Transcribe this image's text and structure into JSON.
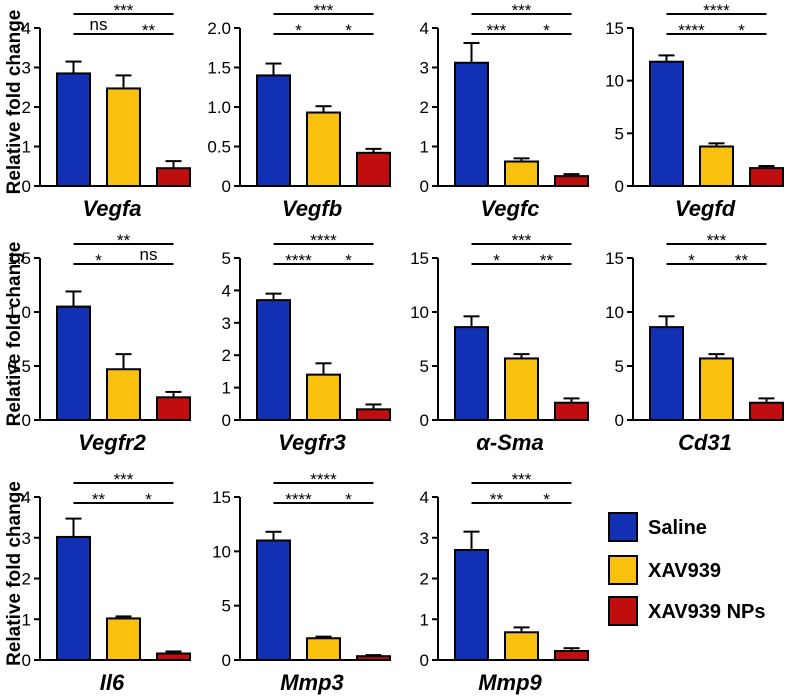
{
  "series_colors": [
    "#1230b4",
    "#f9c00d",
    "#c00d0d"
  ],
  "legend": [
    "Saline",
    "XAV939",
    "XAV939 NPs"
  ],
  "y_axis_label": "Relative fold change",
  "chart_data": [
    {
      "type": "bar",
      "title": "Vegfa",
      "categories": [
        "Saline",
        "XAV939",
        "XAV939 NPs"
      ],
      "values": [
        2.85,
        2.47,
        0.45
      ],
      "errors": [
        0.3,
        0.33,
        0.18
      ],
      "ylim": [
        0,
        4
      ],
      "ticks": [
        0,
        1,
        2,
        3,
        4
      ],
      "tick_labels": [
        "0",
        "1",
        "2",
        "3",
        "4"
      ],
      "ylabel": "Relative fold change",
      "significance": [
        {
          "from": 0,
          "to": 2,
          "label": "***"
        },
        {
          "from": 0,
          "to": 1,
          "label": "ns"
        },
        {
          "from": 1,
          "to": 2,
          "label": "**"
        }
      ]
    },
    {
      "type": "bar",
      "title": "Vegfb",
      "categories": [
        "Saline",
        "XAV939",
        "XAV939 NPs"
      ],
      "values": [
        1.4,
        0.93,
        0.42
      ],
      "errors": [
        0.15,
        0.08,
        0.05
      ],
      "ylim": [
        0,
        2
      ],
      "ticks": [
        0,
        0.5,
        1,
        1.5,
        2
      ],
      "tick_labels": [
        "0",
        "0.5",
        "1.0",
        "1.5",
        "2.0"
      ],
      "ylabel": "",
      "significance": [
        {
          "from": 0,
          "to": 2,
          "label": "***"
        },
        {
          "from": 0,
          "to": 1,
          "label": "*"
        },
        {
          "from": 1,
          "to": 2,
          "label": "*"
        }
      ]
    },
    {
      "type": "bar",
      "title": "Vegfc",
      "categories": [
        "Saline",
        "XAV939",
        "XAV939 NPs"
      ],
      "values": [
        3.12,
        0.62,
        0.25
      ],
      "errors": [
        0.5,
        0.08,
        0.05
      ],
      "ylim": [
        0,
        4
      ],
      "ticks": [
        0,
        1,
        2,
        3,
        4
      ],
      "tick_labels": [
        "0",
        "1",
        "2",
        "3",
        "4"
      ],
      "ylabel": "",
      "significance": [
        {
          "from": 0,
          "to": 2,
          "label": "***"
        },
        {
          "from": 0,
          "to": 1,
          "label": "***"
        },
        {
          "from": 1,
          "to": 2,
          "label": "*"
        }
      ]
    },
    {
      "type": "bar",
      "title": "Vegfd",
      "categories": [
        "Saline",
        "XAV939",
        "XAV939 NPs"
      ],
      "values": [
        11.8,
        3.75,
        1.7
      ],
      "errors": [
        0.6,
        0.3,
        0.2
      ],
      "ylim": [
        0,
        15
      ],
      "ticks": [
        0,
        5,
        10,
        15
      ],
      "tick_labels": [
        "0",
        "5",
        "10",
        "15"
      ],
      "ylabel": "",
      "significance": [
        {
          "from": 0,
          "to": 2,
          "label": "****"
        },
        {
          "from": 0,
          "to": 1,
          "label": "****"
        },
        {
          "from": 1,
          "to": 2,
          "label": "*"
        }
      ]
    },
    {
      "type": "bar",
      "title": "Vegfr2",
      "categories": [
        "Saline",
        "XAV939",
        "XAV939 NPs"
      ],
      "values": [
        1.05,
        0.47,
        0.21
      ],
      "errors": [
        0.14,
        0.14,
        0.05
      ],
      "ylim": [
        0,
        1.5
      ],
      "ticks": [
        0,
        0.5,
        1,
        1.5
      ],
      "tick_labels": [
        "0",
        "0.5",
        "1.0",
        "1.5"
      ],
      "ylabel": "Relative fold change",
      "significance": [
        {
          "from": 0,
          "to": 2,
          "label": "**"
        },
        {
          "from": 0,
          "to": 1,
          "label": "*"
        },
        {
          "from": 1,
          "to": 2,
          "label": "ns"
        }
      ]
    },
    {
      "type": "bar",
      "title": "Vegfr3",
      "categories": [
        "Saline",
        "XAV939",
        "XAV939 NPs"
      ],
      "values": [
        3.7,
        1.4,
        0.33
      ],
      "errors": [
        0.2,
        0.35,
        0.15
      ],
      "ylim": [
        0,
        5
      ],
      "ticks": [
        0,
        1,
        2,
        3,
        4,
        5
      ],
      "tick_labels": [
        "0",
        "1",
        "2",
        "3",
        "4",
        "5"
      ],
      "ylabel": "",
      "significance": [
        {
          "from": 0,
          "to": 2,
          "label": "****"
        },
        {
          "from": 0,
          "to": 1,
          "label": "****"
        },
        {
          "from": 1,
          "to": 2,
          "label": "*"
        }
      ]
    },
    {
      "type": "bar",
      "title": "α-Sma",
      "categories": [
        "Saline",
        "XAV939",
        "XAV939 NPs"
      ],
      "values": [
        8.6,
        5.7,
        1.6
      ],
      "errors": [
        1.0,
        0.4,
        0.4
      ],
      "ylim": [
        0,
        15
      ],
      "ticks": [
        0,
        5,
        10,
        15
      ],
      "tick_labels": [
        "0",
        "5",
        "10",
        "15"
      ],
      "ylabel": "",
      "significance": [
        {
          "from": 0,
          "to": 2,
          "label": "***"
        },
        {
          "from": 0,
          "to": 1,
          "label": "*"
        },
        {
          "from": 1,
          "to": 2,
          "label": "**"
        }
      ]
    },
    {
      "type": "bar",
      "title": "Cd31",
      "categories": [
        "Saline",
        "XAV939",
        "XAV939 NPs"
      ],
      "values": [
        8.6,
        5.7,
        1.6
      ],
      "errors": [
        1.0,
        0.4,
        0.4
      ],
      "ylim": [
        0,
        15
      ],
      "ticks": [
        0,
        5,
        10,
        15
      ],
      "tick_labels": [
        "0",
        "5",
        "10",
        "15"
      ],
      "ylabel": "",
      "significance": [
        {
          "from": 0,
          "to": 2,
          "label": "***"
        },
        {
          "from": 0,
          "to": 1,
          "label": "*"
        },
        {
          "from": 1,
          "to": 2,
          "label": "**"
        }
      ]
    },
    {
      "type": "bar",
      "title": "Il6",
      "categories": [
        "Saline",
        "XAV939",
        "XAV939 NPs"
      ],
      "values": [
        3.02,
        1.02,
        0.16
      ],
      "errors": [
        0.45,
        0.05,
        0.05
      ],
      "ylim": [
        0,
        4
      ],
      "ticks": [
        0,
        1,
        2,
        3,
        4
      ],
      "tick_labels": [
        "0",
        "1",
        "2",
        "3",
        "4"
      ],
      "ylabel": "Relative fold change",
      "significance": [
        {
          "from": 0,
          "to": 2,
          "label": "***"
        },
        {
          "from": 0,
          "to": 1,
          "label": "**"
        },
        {
          "from": 1,
          "to": 2,
          "label": "*"
        }
      ]
    },
    {
      "type": "bar",
      "title": "Mmp3",
      "categories": [
        "Saline",
        "XAV939",
        "XAV939 NPs"
      ],
      "values": [
        11.0,
        2.0,
        0.35
      ],
      "errors": [
        0.8,
        0.15,
        0.1
      ],
      "ylim": [
        0,
        15
      ],
      "ticks": [
        0,
        5,
        10,
        15
      ],
      "tick_labels": [
        "0",
        "5",
        "10",
        "15"
      ],
      "ylabel": "",
      "significance": [
        {
          "from": 0,
          "to": 2,
          "label": "****"
        },
        {
          "from": 0,
          "to": 1,
          "label": "****"
        },
        {
          "from": 1,
          "to": 2,
          "label": "*"
        }
      ]
    },
    {
      "type": "bar",
      "title": "Mmp9",
      "categories": [
        "Saline",
        "XAV939",
        "XAV939 NPs"
      ],
      "values": [
        2.7,
        0.68,
        0.22
      ],
      "errors": [
        0.45,
        0.12,
        0.07
      ],
      "ylim": [
        0,
        4
      ],
      "ticks": [
        0,
        1,
        2,
        3,
        4
      ],
      "tick_labels": [
        "0",
        "1",
        "2",
        "3",
        "4"
      ],
      "ylabel": "",
      "significance": [
        {
          "from": 0,
          "to": 2,
          "label": "***"
        },
        {
          "from": 0,
          "to": 1,
          "label": "**"
        },
        {
          "from": 1,
          "to": 2,
          "label": "*"
        }
      ]
    }
  ]
}
